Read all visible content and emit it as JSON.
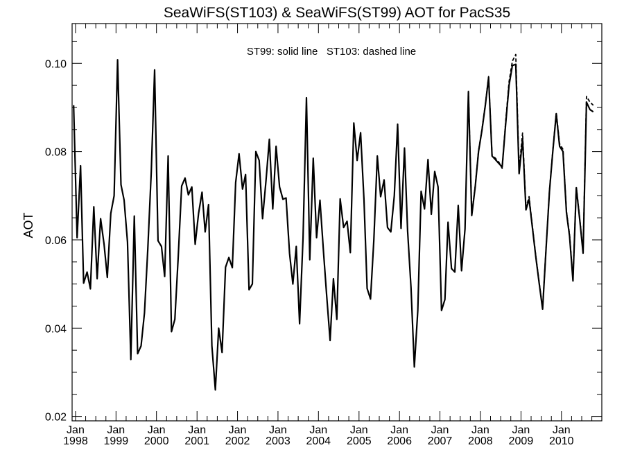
{
  "chart_data": {
    "type": "line",
    "title": "SeaWiFS(ST103) & SeaWiFS(ST99)  AOT for PacS35",
    "annotation": "ST99: solid line   ST103: dashed line",
    "xlabel": "",
    "ylabel": "AOT",
    "xlim": [
      "1997-12-01",
      "2010-12-31"
    ],
    "ylim": [
      0.019,
      0.109
    ],
    "x_ticks": [
      {
        "date": "1998-01-01",
        "month": "Jan",
        "year": "1998"
      },
      {
        "date": "1999-01-01",
        "month": "Jan",
        "year": "1999"
      },
      {
        "date": "2000-01-01",
        "month": "Jan",
        "year": "2000"
      },
      {
        "date": "2001-01-01",
        "month": "Jan",
        "year": "2001"
      },
      {
        "date": "2002-01-01",
        "month": "Jan",
        "year": "2002"
      },
      {
        "date": "2003-01-01",
        "month": "Jan",
        "year": "2003"
      },
      {
        "date": "2004-01-01",
        "month": "Jan",
        "year": "2004"
      },
      {
        "date": "2005-01-01",
        "month": "Jan",
        "year": "2005"
      },
      {
        "date": "2006-01-01",
        "month": "Jan",
        "year": "2006"
      },
      {
        "date": "2007-01-01",
        "month": "Jan",
        "year": "2007"
      },
      {
        "date": "2008-01-01",
        "month": "Jan",
        "year": "2008"
      },
      {
        "date": "2009-01-01",
        "month": "Jan",
        "year": "2009"
      },
      {
        "date": "2010-01-01",
        "month": "Jan",
        "year": "2010"
      }
    ],
    "y_ticks": [
      "0.02",
      "0.04",
      "0.06",
      "0.08",
      "0.10"
    ],
    "grid": false,
    "series": [
      {
        "name": "ST99",
        "style": "solid",
        "color": "#000000",
        "points": [
          [
            "1997-12-15",
            0.0905
          ],
          [
            "1998-01-15",
            0.0605
          ],
          [
            "1998-02-15",
            0.0768
          ],
          [
            "1998-03-15",
            0.0502
          ],
          [
            "1998-04-15",
            0.0527
          ],
          [
            "1998-05-15",
            0.0489
          ],
          [
            "1998-06-15",
            0.0675
          ],
          [
            "1998-07-15",
            0.0512
          ],
          [
            "1998-08-15",
            0.0648
          ],
          [
            "1998-09-15",
            0.059
          ],
          [
            "1998-10-15",
            0.0515
          ],
          [
            "1998-11-15",
            0.066
          ],
          [
            "1998-12-15",
            0.07
          ],
          [
            "1999-01-15",
            0.1008
          ],
          [
            "1999-02-15",
            0.0725
          ],
          [
            "1999-03-15",
            0.069
          ],
          [
            "1999-04-15",
            0.0595
          ],
          [
            "1999-05-15",
            0.0329
          ],
          [
            "1999-06-15",
            0.0654
          ],
          [
            "1999-07-15",
            0.0342
          ],
          [
            "1999-08-15",
            0.036
          ],
          [
            "1999-09-15",
            0.0435
          ],
          [
            "1999-10-15",
            0.058
          ],
          [
            "1999-11-15",
            0.0755
          ],
          [
            "1999-12-15",
            0.0985
          ],
          [
            "2000-01-15",
            0.0598
          ],
          [
            "2000-02-15",
            0.0585
          ],
          [
            "2000-03-15",
            0.0517
          ],
          [
            "2000-04-15",
            0.079
          ],
          [
            "2000-05-15",
            0.0392
          ],
          [
            "2000-06-15",
            0.042
          ],
          [
            "2000-07-15",
            0.056
          ],
          [
            "2000-08-15",
            0.0722
          ],
          [
            "2000-09-15",
            0.074
          ],
          [
            "2000-10-15",
            0.0702
          ],
          [
            "2000-11-15",
            0.072
          ],
          [
            "2000-12-15",
            0.059
          ],
          [
            "2001-01-15",
            0.066
          ],
          [
            "2001-02-15",
            0.0708
          ],
          [
            "2001-03-15",
            0.0618
          ],
          [
            "2001-04-15",
            0.068
          ],
          [
            "2001-05-15",
            0.036
          ],
          [
            "2001-06-15",
            0.026
          ],
          [
            "2001-07-15",
            0.04
          ],
          [
            "2001-08-15",
            0.0345
          ],
          [
            "2001-09-15",
            0.0538
          ],
          [
            "2001-10-15",
            0.056
          ],
          [
            "2001-11-15",
            0.0537
          ],
          [
            "2001-12-15",
            0.073
          ],
          [
            "2002-01-15",
            0.0795
          ],
          [
            "2002-02-15",
            0.0715
          ],
          [
            "2002-03-15",
            0.0748
          ],
          [
            "2002-04-15",
            0.0487
          ],
          [
            "2002-05-15",
            0.05
          ],
          [
            "2002-06-15",
            0.08
          ],
          [
            "2002-07-15",
            0.078
          ],
          [
            "2002-08-15",
            0.0648
          ],
          [
            "2002-09-15",
            0.0735
          ],
          [
            "2002-10-15",
            0.0828
          ],
          [
            "2002-11-15",
            0.067
          ],
          [
            "2002-12-15",
            0.0812
          ],
          [
            "2003-01-15",
            0.072
          ],
          [
            "2003-02-15",
            0.0692
          ],
          [
            "2003-03-15",
            0.0695
          ],
          [
            "2003-04-15",
            0.057
          ],
          [
            "2003-05-15",
            0.05
          ],
          [
            "2003-06-15",
            0.0585
          ],
          [
            "2003-07-15",
            0.041
          ],
          [
            "2003-08-15",
            0.0605
          ],
          [
            "2003-09-15",
            0.0922
          ],
          [
            "2003-10-15",
            0.0555
          ],
          [
            "2003-11-15",
            0.0785
          ],
          [
            "2003-12-15",
            0.0605
          ],
          [
            "2004-01-15",
            0.069
          ],
          [
            "2004-02-15",
            0.0575
          ],
          [
            "2004-03-15",
            0.0475
          ],
          [
            "2004-04-15",
            0.0372
          ],
          [
            "2004-05-15",
            0.0512
          ],
          [
            "2004-06-15",
            0.042
          ],
          [
            "2004-07-15",
            0.0693
          ],
          [
            "2004-08-15",
            0.0628
          ],
          [
            "2004-09-15",
            0.0642
          ],
          [
            "2004-10-15",
            0.0571
          ],
          [
            "2004-11-15",
            0.0865
          ],
          [
            "2004-12-15",
            0.078
          ],
          [
            "2005-01-15",
            0.0843
          ],
          [
            "2005-02-15",
            0.069
          ],
          [
            "2005-03-15",
            0.049
          ],
          [
            "2005-04-15",
            0.0466
          ],
          [
            "2005-05-15",
            0.06
          ],
          [
            "2005-06-15",
            0.079
          ],
          [
            "2005-07-15",
            0.0698
          ],
          [
            "2005-08-15",
            0.0736
          ],
          [
            "2005-09-15",
            0.0628
          ],
          [
            "2005-10-15",
            0.0618
          ],
          [
            "2005-11-15",
            0.07
          ],
          [
            "2005-12-15",
            0.0862
          ],
          [
            "2006-01-15",
            0.0626
          ],
          [
            "2006-02-15",
            0.0808
          ],
          [
            "2006-03-15",
            0.062
          ],
          [
            "2006-04-15",
            0.0492
          ],
          [
            "2006-05-15",
            0.0312
          ],
          [
            "2006-06-15",
            0.044
          ],
          [
            "2006-07-15",
            0.071
          ],
          [
            "2006-08-15",
            0.067
          ],
          [
            "2006-09-15",
            0.0782
          ],
          [
            "2006-10-15",
            0.0658
          ],
          [
            "2006-11-15",
            0.0755
          ],
          [
            "2006-12-15",
            0.072
          ],
          [
            "2007-01-15",
            0.044
          ],
          [
            "2007-02-15",
            0.0465
          ],
          [
            "2007-03-15",
            0.064
          ],
          [
            "2007-04-15",
            0.0535
          ],
          [
            "2007-05-15",
            0.0527
          ],
          [
            "2007-06-15",
            0.0678
          ],
          [
            "2007-07-15",
            0.053
          ],
          [
            "2007-08-15",
            0.0625
          ],
          [
            "2007-09-15",
            0.0935
          ],
          [
            "2007-10-15",
            0.0655
          ],
          [
            "2007-11-15",
            0.072
          ],
          [
            "2007-12-15",
            0.08
          ],
          [
            "2008-01-15",
            0.0848
          ],
          [
            "2008-02-15",
            0.0906
          ],
          [
            "2008-03-15",
            0.0968
          ],
          [
            "2008-04-15",
            0.079
          ],
          [
            "2008-05-15",
            0.0782
          ],
          [
            "2008-06-15",
            0.0773
          ],
          [
            "2008-07-15",
            0.0765
          ],
          [
            "2008-08-15",
            0.086
          ],
          [
            "2008-09-15",
            0.095
          ],
          [
            "2008-10-15",
            0.0995
          ],
          [
            "2008-11-15",
            0.0998
          ],
          [
            "2008-12-15",
            0.075
          ],
          [
            "2009-01-15",
            0.0828
          ],
          [
            "2009-02-15",
            0.0668
          ],
          [
            "2009-03-15",
            0.0692
          ],
          [
            "2009-04-15",
            0.0625
          ],
          [
            "2009-05-15",
            0.056
          ],
          [
            "2009-06-15",
            0.05
          ],
          [
            "2009-07-15",
            0.0443
          ],
          [
            "2009-08-15",
            0.058
          ],
          [
            "2009-09-15",
            0.071
          ],
          [
            "2009-10-15",
            0.08
          ],
          [
            "2009-11-15",
            0.0886
          ],
          [
            "2009-12-15",
            0.0812
          ],
          [
            "2010-01-15",
            0.08
          ],
          [
            "2010-02-15",
            0.0662
          ],
          [
            "2010-03-15",
            0.0608
          ],
          [
            "2010-04-15",
            0.0507
          ],
          [
            "2010-05-15",
            0.0718
          ],
          [
            "2010-06-15",
            0.0645
          ],
          [
            "2010-07-15",
            0.057
          ],
          [
            "2010-08-15",
            0.0912
          ],
          [
            "2010-09-15",
            0.0895
          ],
          [
            "2010-10-15",
            0.089
          ]
        ]
      },
      {
        "name": "ST103",
        "style": "dashed",
        "color": "#000000",
        "points": [
          [
            "2007-09-15",
            0.0938
          ],
          [
            "2007-10-15",
            0.0658
          ],
          [
            "2007-11-15",
            0.0722
          ],
          [
            "2007-12-15",
            0.0802
          ],
          [
            "2008-01-15",
            0.085
          ],
          [
            "2008-02-15",
            0.0908
          ],
          [
            "2008-03-15",
            0.097
          ],
          [
            "2008-04-15",
            0.0792
          ],
          [
            "2008-05-15",
            0.0785
          ],
          [
            "2008-06-15",
            0.0776
          ],
          [
            "2008-07-15",
            0.0762
          ],
          [
            "2008-08-15",
            0.0866
          ],
          [
            "2008-09-15",
            0.0958
          ],
          [
            "2008-10-15",
            0.1005
          ],
          [
            "2008-11-15",
            0.102
          ],
          [
            "2008-12-15",
            0.076
          ],
          [
            "2009-01-15",
            0.0842
          ],
          [
            "2009-02-15",
            0.0672
          ],
          [
            "2009-03-15",
            0.0698
          ],
          [
            "2009-04-15",
            0.0628
          ],
          [
            "2009-05-15",
            0.0562
          ],
          [
            "2009-06-15",
            0.0502
          ],
          [
            "2009-07-15",
            0.0445
          ],
          [
            "2009-08-15",
            0.0582
          ],
          [
            "2009-09-15",
            0.0712
          ],
          [
            "2009-10-15",
            0.0802
          ],
          [
            "2009-11-15",
            0.0888
          ],
          [
            "2009-12-15",
            0.0818
          ],
          [
            "2010-01-15",
            0.0805
          ],
          [
            "2010-02-15",
            0.0665
          ],
          [
            "2010-03-15",
            0.0612
          ],
          [
            "2010-04-15",
            0.051
          ],
          [
            "2010-05-15",
            0.072
          ],
          [
            "2010-06-15",
            0.0648
          ],
          [
            "2010-07-15",
            0.0574
          ],
          [
            "2010-08-15",
            0.0925
          ],
          [
            "2010-09-15",
            0.0912
          ],
          [
            "2010-10-15",
            0.0905
          ]
        ]
      }
    ]
  }
}
